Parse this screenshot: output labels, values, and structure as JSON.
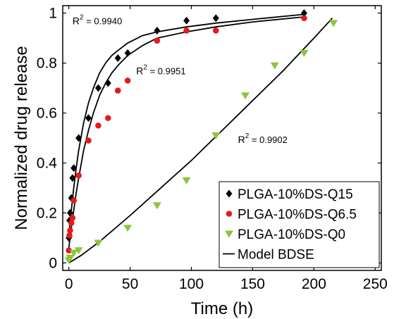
{
  "chart_data": {
    "type": "scatter",
    "xlabel": "Time (h)",
    "ylabel": "Normalized drug release",
    "xlim": [
      -5,
      255
    ],
    "ylim": [
      -0.03,
      1.03
    ],
    "xticks": [
      0,
      50,
      100,
      150,
      200,
      250
    ],
    "yticks": [
      0,
      0.2,
      0.4,
      0.6,
      0.8,
      1
    ],
    "grid": false,
    "legend_position": "bottom-right",
    "series": [
      {
        "name": "PLGA-10%DS-Q15",
        "marker": "diamond",
        "color": "#000000",
        "x": [
          0,
          0.5,
          1,
          2,
          3,
          4,
          8,
          16,
          24,
          32,
          40,
          48,
          72,
          96,
          120,
          192
        ],
        "y": [
          0.1,
          0.17,
          0.2,
          0.26,
          0.34,
          0.38,
          0.5,
          0.58,
          0.7,
          0.72,
          0.82,
          0.84,
          0.93,
          0.97,
          0.98,
          1.0
        ]
      },
      {
        "name": "PLGA-10%DS-Q6.5",
        "marker": "circle",
        "color": "#e41a1c",
        "x": [
          0,
          0.5,
          1,
          2,
          3,
          4,
          8,
          16,
          24,
          32,
          40,
          48,
          72,
          96,
          120,
          192
        ],
        "y": [
          0.05,
          0.11,
          0.13,
          0.16,
          0.18,
          0.25,
          0.35,
          0.49,
          0.55,
          0.58,
          0.69,
          0.73,
          0.89,
          0.93,
          0.93,
          0.98
        ]
      },
      {
        "name": "PLGA-10%DS-Q0",
        "marker": "triangle-down",
        "color": "#8bc53f",
        "x": [
          0,
          1,
          4,
          8,
          24,
          48,
          72,
          96,
          120,
          144,
          168,
          192,
          216
        ],
        "y": [
          0.01,
          0.02,
          0.04,
          0.05,
          0.08,
          0.14,
          0.23,
          0.33,
          0.51,
          0.67,
          0.79,
          0.84,
          0.96
        ]
      }
    ],
    "model": {
      "name": "Model BDSE",
      "color": "#000000",
      "curves": [
        {
          "for": "PLGA-10%DS-Q15",
          "x": [
            0,
            1,
            2,
            4,
            6,
            8,
            12,
            16,
            20,
            25,
            30,
            35,
            40,
            48,
            60,
            72,
            96,
            120,
            150,
            192
          ],
          "y": [
            0.1,
            0.16,
            0.21,
            0.3,
            0.38,
            0.45,
            0.56,
            0.64,
            0.7,
            0.76,
            0.8,
            0.83,
            0.85,
            0.88,
            0.91,
            0.925,
            0.945,
            0.96,
            0.975,
            0.995
          ]
        },
        {
          "for": "PLGA-10%DS-Q6.5",
          "x": [
            0,
            1,
            2,
            4,
            6,
            8,
            12,
            16,
            20,
            25,
            30,
            35,
            40,
            48,
            60,
            72,
            96,
            120,
            150,
            192
          ],
          "y": [
            0.06,
            0.1,
            0.14,
            0.21,
            0.28,
            0.34,
            0.45,
            0.53,
            0.6,
            0.67,
            0.72,
            0.76,
            0.79,
            0.83,
            0.87,
            0.9,
            0.925,
            0.945,
            0.965,
            0.985
          ]
        },
        {
          "for": "PLGA-10%DS-Q0",
          "x": [
            0,
            10,
            25,
            50,
            75,
            100,
            125,
            150,
            175,
            200,
            215
          ],
          "y": [
            0.0,
            0.03,
            0.085,
            0.19,
            0.3,
            0.41,
            0.53,
            0.65,
            0.77,
            0.9,
            0.98
          ]
        }
      ]
    },
    "annotations": [
      {
        "for": "PLGA-10%DS-Q15",
        "text": "= 0.9940",
        "prefix": "R",
        "sup": "2",
        "x": 3,
        "y": 0.955
      },
      {
        "for": "PLGA-10%DS-Q6.5",
        "text": "= 0.9951",
        "prefix": "R",
        "sup": "2",
        "x": 55,
        "y": 0.755
      },
      {
        "for": "PLGA-10%DS-Q0",
        "text": "= 0.9902",
        "prefix": "R",
        "sup": "2",
        "x": 138,
        "y": 0.48
      }
    ]
  }
}
